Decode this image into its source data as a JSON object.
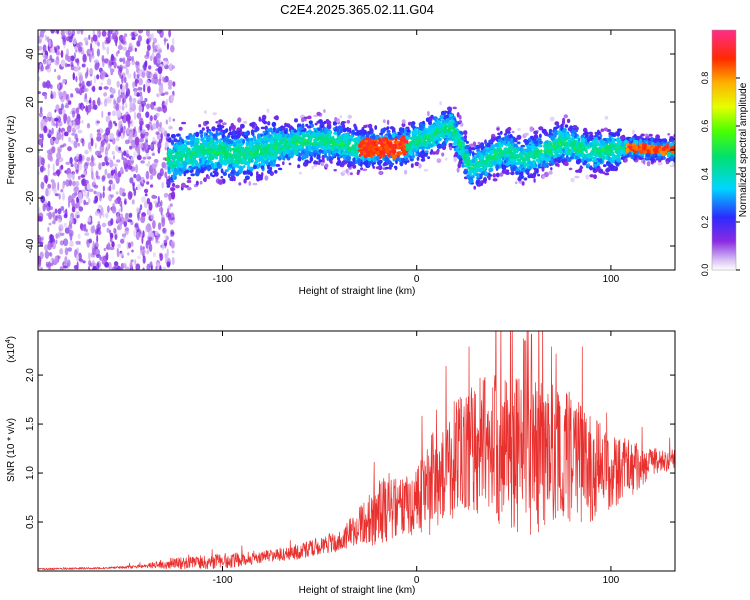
{
  "title": "C2E4.2025.365.02.11.G04",
  "chart_data": [
    {
      "type": "heatmap",
      "name": "spectrogram",
      "xlabel": "Height of straight line (km)",
      "ylabel": "Frequency (Hz)",
      "xlim": [
        -195,
        133
      ],
      "ylim": [
        -50,
        50
      ],
      "x_ticks": [
        -100,
        0,
        100
      ],
      "y_ticks": [
        -40,
        -20,
        0,
        20,
        40
      ],
      "colorbar": {
        "label": "Normalized spectral amplitude",
        "range": [
          0,
          1
        ],
        "ticks": [
          "0.0",
          "0.2",
          "0.4",
          "0.6",
          "0.8"
        ],
        "tick_values": [
          0,
          0.2,
          0.4,
          0.6,
          0.8
        ]
      },
      "ridge_center_hz": [
        {
          "x": -125,
          "y": -4
        },
        {
          "x": -110,
          "y": 0
        },
        {
          "x": -90,
          "y": -2
        },
        {
          "x": -70,
          "y": 2
        },
        {
          "x": -50,
          "y": 4
        },
        {
          "x": -30,
          "y": 1
        },
        {
          "x": -10,
          "y": 1
        },
        {
          "x": 5,
          "y": 5
        },
        {
          "x": 18,
          "y": 10
        },
        {
          "x": 28,
          "y": -8
        },
        {
          "x": 45,
          "y": 0
        },
        {
          "x": 55,
          "y": -4
        },
        {
          "x": 75,
          "y": 3
        },
        {
          "x": 90,
          "y": -1
        },
        {
          "x": 110,
          "y": 1
        },
        {
          "x": 133,
          "y": 0
        }
      ]
    },
    {
      "type": "line",
      "name": "snr",
      "xlabel": "Height of straight line (km)",
      "ylabel": "SNR (10 * v/v)",
      "y_multiplier": "(x10",
      "y_multiplier_exp": "4",
      "y_multiplier_close": ")",
      "xlim": [
        -195,
        133
      ],
      "ylim": [
        0,
        2.45
      ],
      "x_ticks": [
        -100,
        0,
        100
      ],
      "y_ticks": [
        0.5,
        1.0,
        1.5,
        2.0
      ],
      "y_tick_labels": [
        "0.5",
        "1.0",
        "1.5",
        "2.0"
      ],
      "color": "#e8302e",
      "envelope_x": [
        -195,
        -160,
        -140,
        -125,
        -100,
        -80,
        -60,
        -40,
        -30,
        -20,
        -10,
        0,
        5,
        10,
        20,
        30,
        40,
        50,
        60,
        70,
        80,
        90,
        100,
        110,
        120,
        133
      ],
      "envelope_y": [
        0.02,
        0.03,
        0.05,
        0.08,
        0.1,
        0.14,
        0.2,
        0.3,
        0.45,
        0.6,
        0.65,
        0.72,
        0.85,
        0.95,
        1.15,
        1.3,
        1.25,
        1.2,
        1.15,
        1.2,
        1.15,
        1.05,
        1.0,
        1.05,
        1.1,
        1.15
      ],
      "spread_y": [
        0.01,
        0.01,
        0.02,
        0.06,
        0.08,
        0.06,
        0.08,
        0.1,
        0.18,
        0.35,
        0.3,
        0.35,
        0.5,
        0.55,
        0.65,
        0.7,
        0.75,
        0.8,
        0.8,
        0.7,
        0.65,
        0.55,
        0.4,
        0.3,
        0.15,
        0.1
      ]
    }
  ]
}
